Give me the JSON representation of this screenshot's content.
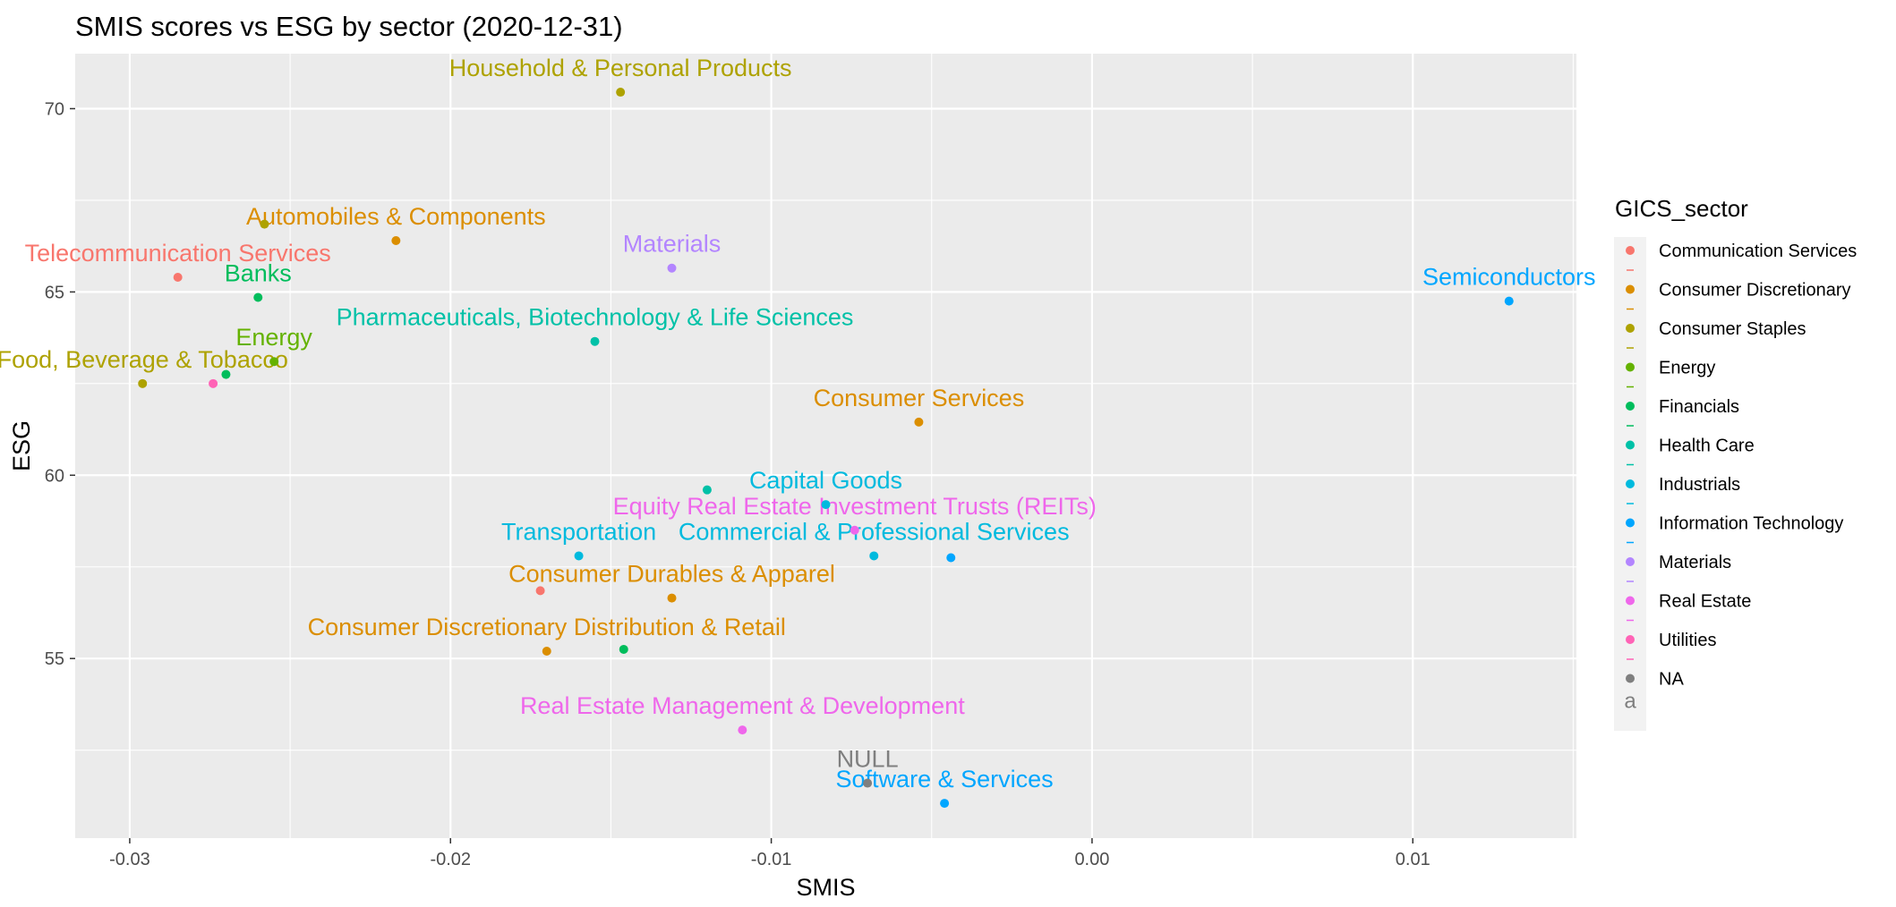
{
  "chart_data": {
    "type": "scatter",
    "title": "SMIS scores vs ESG by sector (2020-12-31)",
    "xlabel": "SMIS",
    "ylabel": "ESG",
    "xlim": [
      -0.0317,
      0.0151
    ],
    "ylim": [
      50.1,
      71.5
    ],
    "x_ticks": [
      -0.03,
      -0.02,
      -0.01,
      0.0,
      0.01
    ],
    "x_tick_labels": [
      "-0.03",
      "-0.02",
      "-0.01",
      "0.00",
      "0.01"
    ],
    "y_ticks": [
      55,
      60,
      65,
      70
    ],
    "y_tick_labels": [
      "55",
      "60",
      "65",
      "70"
    ],
    "grid": true,
    "legend": {
      "title": "GICS_sector",
      "position": "right",
      "key_letter": "a",
      "entries": [
        {
          "label": "Communication Services",
          "color": "#F8766D"
        },
        {
          "label": "Consumer Discretionary",
          "color": "#DB8E00"
        },
        {
          "label": "Consumer Staples",
          "color": "#AEA200"
        },
        {
          "label": "Energy",
          "color": "#64B200"
        },
        {
          "label": "Financials",
          "color": "#00BD5C"
        },
        {
          "label": "Health Care",
          "color": "#00C1A7"
        },
        {
          "label": "Industrials",
          "color": "#00BADE"
        },
        {
          "label": "Information Technology",
          "color": "#00A6FF"
        },
        {
          "label": "Materials",
          "color": "#B385FF"
        },
        {
          "label": "Real Estate",
          "color": "#EF67EB"
        },
        {
          "label": "Utilities",
          "color": "#FF63B6"
        },
        {
          "label": "NA",
          "color": "#7F7F7F"
        }
      ]
    },
    "points": [
      {
        "x": -0.0285,
        "y": 65.4,
        "sector": "Communication Services",
        "label": "Telecommunication Services"
      },
      {
        "x": -0.0217,
        "y": 66.4,
        "sector": "Consumer Discretionary",
        "label": "Automobiles & Components"
      },
      {
        "x": -0.0054,
        "y": 61.45,
        "sector": "Consumer Discretionary",
        "label": "Consumer Services"
      },
      {
        "x": -0.0131,
        "y": 56.65,
        "sector": "Consumer Discretionary",
        "label": "Consumer Durables & Apparel"
      },
      {
        "x": -0.017,
        "y": 55.2,
        "sector": "Consumer Discretionary",
        "label": "Consumer Discretionary Distribution & Retail"
      },
      {
        "x": -0.0147,
        "y": 70.45,
        "sector": "Consumer Staples",
        "label": "Household & Personal Products"
      },
      {
        "x": -0.0296,
        "y": 62.5,
        "sector": "Consumer Staples",
        "label": "Food, Beverage & Tobacco"
      },
      {
        "x": -0.0258,
        "y": 66.85,
        "sector": "Consumer Staples",
        "label": null
      },
      {
        "x": -0.0255,
        "y": 63.1,
        "sector": "Energy",
        "label": "Energy"
      },
      {
        "x": -0.026,
        "y": 64.85,
        "sector": "Financials",
        "label": "Banks"
      },
      {
        "x": -0.027,
        "y": 62.75,
        "sector": "Financials",
        "label": null
      },
      {
        "x": -0.0146,
        "y": 55.25,
        "sector": "Financials",
        "label": null
      },
      {
        "x": -0.0155,
        "y": 63.65,
        "sector": "Health Care",
        "label": "Pharmaceuticals, Biotechnology & Life Sciences"
      },
      {
        "x": -0.012,
        "y": 59.6,
        "sector": "Health Care",
        "label": null
      },
      {
        "x": -0.0083,
        "y": 59.2,
        "sector": "Industrials",
        "label": "Capital Goods"
      },
      {
        "x": -0.016,
        "y": 57.8,
        "sector": "Industrials",
        "label": "Transportation"
      },
      {
        "x": -0.0068,
        "y": 57.8,
        "sector": "Industrials",
        "label": "Commercial  & Professional Services"
      },
      {
        "x": 0.013,
        "y": 64.75,
        "sector": "Information Technology",
        "label": "Semiconductors"
      },
      {
        "x": -0.0046,
        "y": 51.05,
        "sector": "Information Technology",
        "label": "Software & Services"
      },
      {
        "x": -0.0044,
        "y": 57.75,
        "sector": "Information Technology",
        "label": null
      },
      {
        "x": -0.0131,
        "y": 65.65,
        "sector": "Materials",
        "label": "Materials"
      },
      {
        "x": -0.0074,
        "y": 58.5,
        "sector": "Real Estate",
        "label": "Equity Real Estate Investment Trusts (REITs)"
      },
      {
        "x": -0.0109,
        "y": 53.05,
        "sector": "Real Estate",
        "label": "Real Estate Management & Development"
      },
      {
        "x": -0.0274,
        "y": 62.5,
        "sector": "Utilities",
        "label": null
      },
      {
        "x": -0.0172,
        "y": 56.85,
        "sector": "Communication Services",
        "label": null
      },
      {
        "x": -0.007,
        "y": 51.6,
        "sector": "NA",
        "label": "NULL"
      }
    ]
  }
}
